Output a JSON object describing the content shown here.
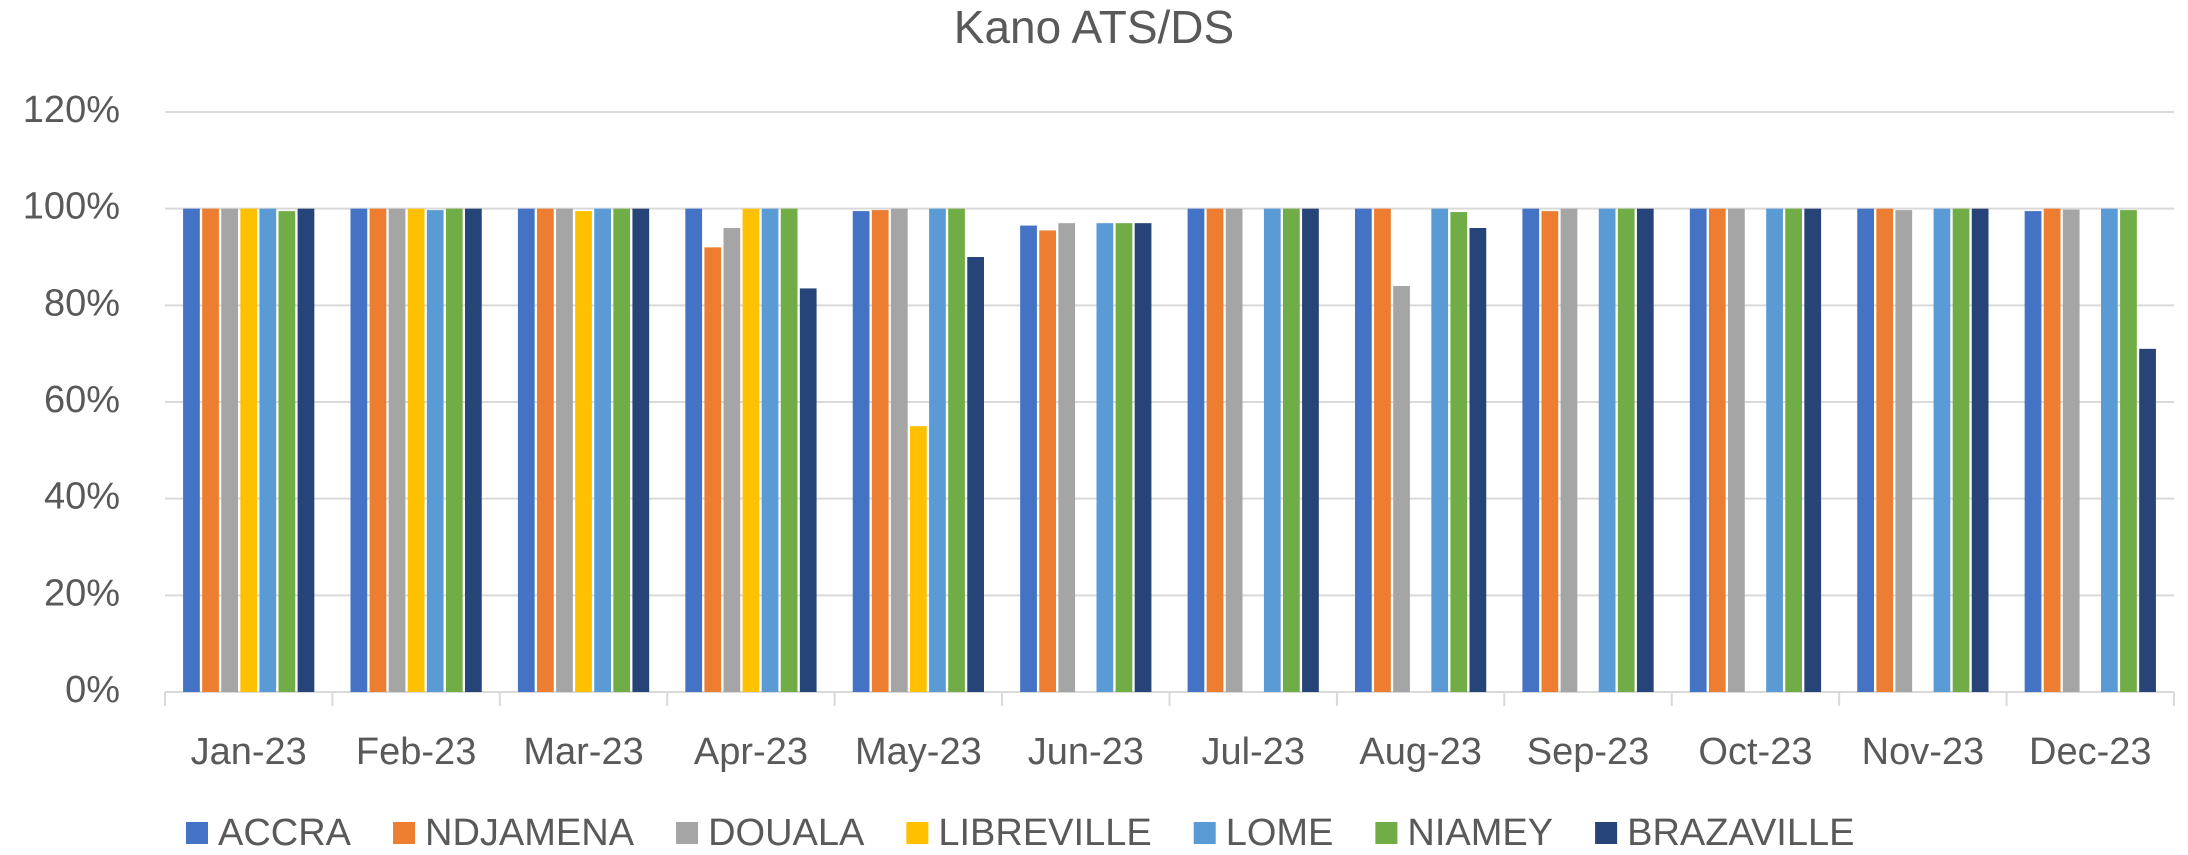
{
  "chart_data": {
    "type": "bar",
    "title": "Kano ATS/DS",
    "categories": [
      "Jan-23",
      "Feb-23",
      "Mar-23",
      "Apr-23",
      "May-23",
      "Jun-23",
      "Jul-23",
      "Aug-23",
      "Sep-23",
      "Oct-23",
      "Nov-23",
      "Dec-23"
    ],
    "series": [
      {
        "name": "ACCRA",
        "color": "#4472c4",
        "values": [
          100,
          100,
          100,
          100,
          99.5,
          96.5,
          100,
          100,
          100,
          100,
          100,
          99.5
        ]
      },
      {
        "name": "NDJAMENA",
        "color": "#ed7d31",
        "values": [
          100,
          100,
          100,
          92,
          99.7,
          95.5,
          100,
          100,
          99.5,
          100,
          100,
          100
        ]
      },
      {
        "name": "DOUALA",
        "color": "#a5a5a5",
        "values": [
          100,
          100,
          100,
          96,
          100,
          97,
          100,
          84,
          100,
          100,
          99.7,
          99.8
        ]
      },
      {
        "name": "LIBREVILLE",
        "color": "#ffc000",
        "values": [
          100,
          100,
          99.5,
          100,
          55,
          null,
          null,
          null,
          null,
          null,
          null,
          null
        ]
      },
      {
        "name": "LOME",
        "color": "#5b9bd5",
        "values": [
          100,
          99.7,
          100,
          100,
          100,
          97,
          100,
          100,
          100,
          100,
          100,
          100
        ]
      },
      {
        "name": "NIAMEY",
        "color": "#70ad47",
        "values": [
          99.5,
          100,
          100,
          100,
          100,
          97,
          100,
          99.3,
          100,
          100,
          100,
          99.7
        ]
      },
      {
        "name": "BRAZAVILLE",
        "color": "#264478",
        "values": [
          100,
          100,
          100,
          83.5,
          90,
          97,
          100,
          96,
          100,
          100,
          100,
          71
        ]
      }
    ],
    "ylim": [
      0,
      120
    ],
    "yticks": [
      {
        "value": 0,
        "label": "0%"
      },
      {
        "value": 20,
        "label": "20%"
      },
      {
        "value": 40,
        "label": "40%"
      },
      {
        "value": 60,
        "label": "60%"
      },
      {
        "value": 80,
        "label": "80%"
      },
      {
        "value": 100,
        "label": "100%"
      },
      {
        "value": 120,
        "label": "120%"
      }
    ],
    "grid": true,
    "legend": "bottom"
  }
}
